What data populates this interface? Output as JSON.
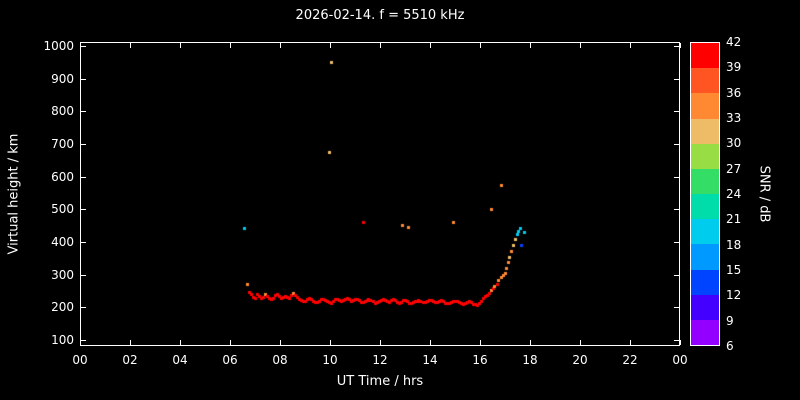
{
  "title": "2026-02-14. f = 5510 kHz",
  "colors": {
    "background": "#000000",
    "foreground": "#ffffff"
  },
  "axes": {
    "x": {
      "label": "UT Time / hrs",
      "tick_labels": [
        "00",
        "02",
        "04",
        "06",
        "08",
        "10",
        "12",
        "14",
        "16",
        "18",
        "20",
        "22",
        "00"
      ],
      "range": [
        0,
        24
      ]
    },
    "y": {
      "label": "Virtual height / km",
      "ticks": [
        100,
        200,
        300,
        400,
        500,
        600,
        700,
        800,
        900,
        1000
      ],
      "range": [
        100,
        1000
      ]
    }
  },
  "colorbar": {
    "label": "SNR / dB",
    "ticks": [
      6,
      9,
      12,
      15,
      18,
      21,
      24,
      27,
      30,
      33,
      36,
      39,
      42
    ],
    "range": [
      6,
      42
    ],
    "colors": [
      "#9400ff",
      "#4400ff",
      "#0044ff",
      "#0099ff",
      "#00ccee",
      "#00ddaa",
      "#33dd66",
      "#99dd44",
      "#eebb66",
      "#ff8833",
      "#ff5522",
      "#ff0000"
    ]
  },
  "chart_data": {
    "type": "scatter",
    "title": "2026-02-14. f = 5510 kHz",
    "xlabel": "UT Time / hrs",
    "ylabel": "Virtual height / km",
    "colorbar_label": "SNR / dB",
    "xlim": [
      0,
      24
    ],
    "ylim": [
      100,
      1000
    ],
    "snr_lim": [
      6,
      42
    ],
    "grid": false,
    "point_format": [
      "ut_hours",
      "virtual_height_km",
      "snr_db"
    ],
    "points": [
      [
        6.55,
        442,
        20
      ],
      [
        9.97,
        676,
        31
      ],
      [
        10.05,
        952,
        31
      ],
      [
        11.32,
        462,
        40
      ],
      [
        12.88,
        452,
        34
      ],
      [
        13.1,
        446,
        34
      ],
      [
        14.9,
        462,
        34
      ],
      [
        16.42,
        502,
        34
      ],
      [
        16.85,
        576,
        34
      ],
      [
        6.68,
        272,
        34
      ],
      [
        6.75,
        248,
        40
      ],
      [
        6.82,
        240,
        41
      ],
      [
        6.9,
        232,
        41
      ],
      [
        6.98,
        228,
        41
      ],
      [
        7.06,
        240,
        41
      ],
      [
        7.14,
        236,
        40
      ],
      [
        7.22,
        228,
        41
      ],
      [
        7.3,
        232,
        41
      ],
      [
        7.38,
        240,
        34
      ],
      [
        7.46,
        234,
        41
      ],
      [
        7.54,
        228,
        41
      ],
      [
        7.62,
        224,
        41
      ],
      [
        7.7,
        230,
        40
      ],
      [
        7.78,
        238,
        41
      ],
      [
        7.86,
        242,
        41
      ],
      [
        7.94,
        236,
        41
      ],
      [
        8.02,
        228,
        41
      ],
      [
        8.1,
        232,
        40
      ],
      [
        8.18,
        236,
        41
      ],
      [
        8.26,
        232,
        41
      ],
      [
        8.34,
        228,
        41
      ],
      [
        8.42,
        238,
        41
      ],
      [
        8.5,
        244,
        34
      ],
      [
        8.58,
        238,
        41
      ],
      [
        8.66,
        232,
        41
      ],
      [
        8.74,
        226,
        41
      ],
      [
        8.82,
        222,
        41
      ],
      [
        8.9,
        218,
        40
      ],
      [
        8.98,
        220,
        41
      ],
      [
        9.06,
        224,
        41
      ],
      [
        9.14,
        228,
        41
      ],
      [
        9.22,
        226,
        41
      ],
      [
        9.3,
        220,
        41
      ],
      [
        9.38,
        215,
        40
      ],
      [
        9.46,
        217,
        41
      ],
      [
        9.54,
        220,
        41
      ],
      [
        9.62,
        224,
        41
      ],
      [
        9.7,
        226,
        41
      ],
      [
        9.78,
        222,
        41
      ],
      [
        9.86,
        218,
        41
      ],
      [
        9.94,
        216,
        41
      ],
      [
        10.02,
        214,
        41
      ],
      [
        10.1,
        218,
        40
      ],
      [
        10.18,
        224,
        41
      ],
      [
        10.26,
        226,
        41
      ],
      [
        10.34,
        222,
        41
      ],
      [
        10.42,
        218,
        41
      ],
      [
        10.5,
        221,
        41
      ],
      [
        10.58,
        226,
        40
      ],
      [
        10.66,
        228,
        41
      ],
      [
        10.74,
        224,
        41
      ],
      [
        10.82,
        220,
        41
      ],
      [
        10.9,
        221,
        41
      ],
      [
        10.98,
        224,
        41
      ],
      [
        11.06,
        226,
        41
      ],
      [
        11.14,
        221,
        41
      ],
      [
        11.22,
        215,
        41
      ],
      [
        11.3,
        217,
        40
      ],
      [
        11.38,
        219,
        41
      ],
      [
        11.46,
        221,
        41
      ],
      [
        11.54,
        225,
        41
      ],
      [
        11.62,
        222,
        41
      ],
      [
        11.7,
        218,
        41
      ],
      [
        11.78,
        214,
        40
      ],
      [
        11.86,
        216,
        41
      ],
      [
        11.94,
        220,
        41
      ],
      [
        12.02,
        223,
        41
      ],
      [
        12.1,
        226,
        41
      ],
      [
        12.18,
        223,
        41
      ],
      [
        12.26,
        219,
        41
      ],
      [
        12.34,
        217,
        40
      ],
      [
        12.42,
        221,
        41
      ],
      [
        12.5,
        225,
        41
      ],
      [
        12.58,
        221,
        41
      ],
      [
        12.66,
        217,
        41
      ],
      [
        12.74,
        214,
        41
      ],
      [
        12.82,
        217,
        40
      ],
      [
        12.9,
        221,
        41
      ],
      [
        12.98,
        222,
        41
      ],
      [
        13.06,
        219,
        41
      ],
      [
        13.14,
        214,
        41
      ],
      [
        13.22,
        212,
        41
      ],
      [
        13.3,
        215,
        40
      ],
      [
        13.38,
        218,
        41
      ],
      [
        13.46,
        220,
        41
      ],
      [
        13.54,
        223,
        41
      ],
      [
        13.62,
        220,
        41
      ],
      [
        13.7,
        215,
        41
      ],
      [
        13.78,
        217,
        40
      ],
      [
        13.86,
        219,
        41
      ],
      [
        13.94,
        221,
        41
      ],
      [
        14.02,
        223,
        41
      ],
      [
        14.1,
        219,
        41
      ],
      [
        14.18,
        215,
        41
      ],
      [
        14.26,
        217,
        40
      ],
      [
        14.34,
        220,
        41
      ],
      [
        14.42,
        222,
        41
      ],
      [
        14.5,
        219,
        41
      ],
      [
        14.58,
        214,
        41
      ],
      [
        14.66,
        212,
        41
      ],
      [
        14.74,
        213,
        40
      ],
      [
        14.82,
        216,
        41
      ],
      [
        14.9,
        218,
        41
      ],
      [
        14.98,
        219,
        41
      ],
      [
        15.06,
        220,
        41
      ],
      [
        15.14,
        217,
        41
      ],
      [
        15.22,
        213,
        40
      ],
      [
        15.3,
        211,
        41
      ],
      [
        15.38,
        214,
        41
      ],
      [
        15.46,
        217,
        41
      ],
      [
        15.54,
        218,
        41
      ],
      [
        15.62,
        215,
        41
      ],
      [
        15.7,
        211,
        40
      ],
      [
        15.78,
        209,
        41
      ],
      [
        15.86,
        208,
        41
      ],
      [
        15.94,
        212,
        41
      ],
      [
        16.02,
        220,
        41
      ],
      [
        16.1,
        228,
        41
      ],
      [
        16.18,
        234,
        40
      ],
      [
        16.26,
        239,
        41
      ],
      [
        16.34,
        245,
        41
      ],
      [
        16.42,
        252,
        34
      ],
      [
        16.5,
        258,
        41
      ],
      [
        16.58,
        264,
        34
      ],
      [
        16.66,
        272,
        41
      ],
      [
        16.74,
        284,
        34
      ],
      [
        16.82,
        294,
        34
      ],
      [
        16.9,
        300,
        34
      ],
      [
        16.98,
        306,
        34
      ],
      [
        17.04,
        320,
        34
      ],
      [
        17.1,
        338,
        34
      ],
      [
        17.16,
        355,
        31
      ],
      [
        17.22,
        372,
        34
      ],
      [
        17.3,
        392,
        31
      ],
      [
        17.38,
        408,
        31
      ],
      [
        17.46,
        424,
        20
      ],
      [
        17.52,
        434,
        19
      ],
      [
        17.6,
        442,
        20
      ],
      [
        17.64,
        392,
        13
      ],
      [
        17.74,
        432,
        19
      ]
    ]
  }
}
